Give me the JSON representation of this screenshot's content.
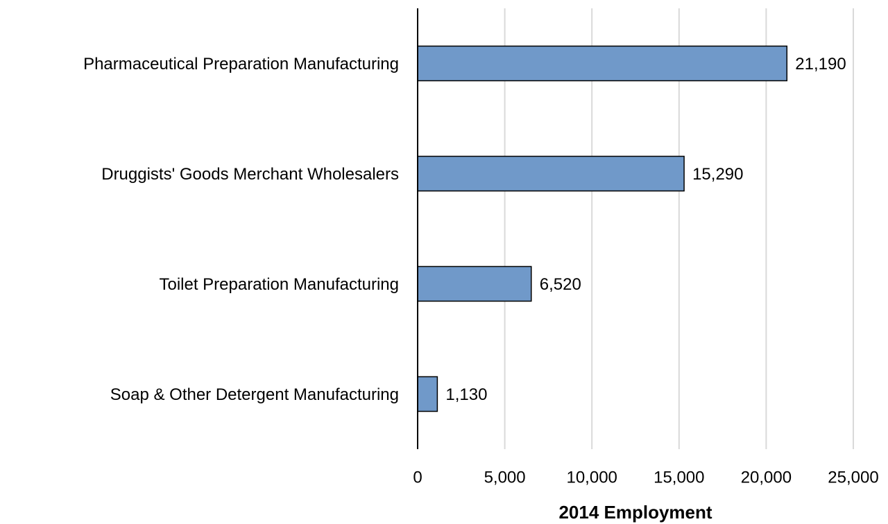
{
  "chart_data": {
    "type": "barh",
    "categories": [
      "Pharmaceutical Preparation Manufacturing",
      "Druggists' Goods Merchant Wholesalers",
      "Toilet Preparation Manufacturing",
      "Soap & Other Detergent Manufacturing"
    ],
    "values": [
      21190,
      15290,
      6520,
      1130
    ],
    "value_labels": [
      "21,190",
      "15,290",
      "6,520",
      "1,130"
    ],
    "color": "#7099c9",
    "xlabel": "2014 Employment",
    "xlim": [
      0,
      25000
    ],
    "xticks": [
      0,
      {
        "value": 5000,
        "label": "5,000"
      },
      {
        "value": 10000,
        "label": "10,000"
      },
      {
        "value": 15000,
        "label": "15,000"
      },
      {
        "value": 20000,
        "label": "20,000"
      },
      {
        "value": 25000,
        "label": "25,000"
      }
    ],
    "grid": true
  }
}
